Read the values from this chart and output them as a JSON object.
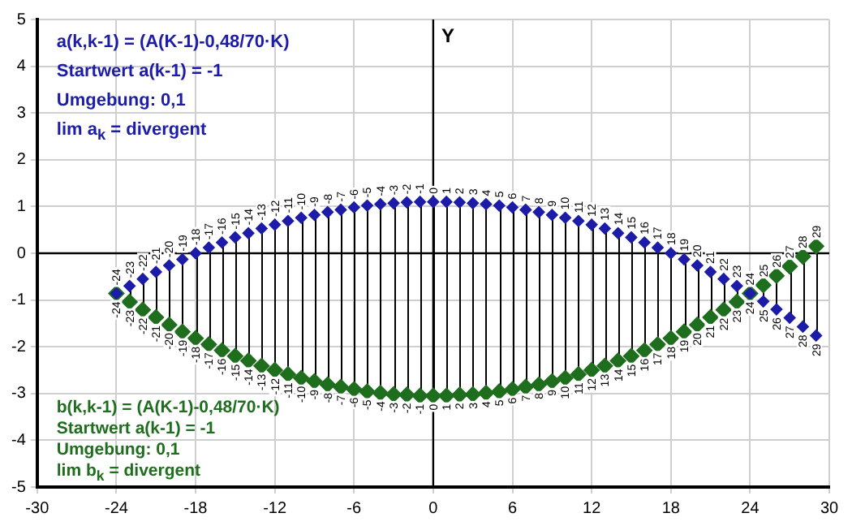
{
  "chart_data": {
    "type": "scatter",
    "ylabel": "Y",
    "x": [
      -24,
      -23,
      -22,
      -21,
      -20,
      -19,
      -18,
      -17,
      -16,
      -15,
      -14,
      -13,
      -12,
      -11,
      -10,
      -9,
      -8,
      -7,
      -6,
      -5,
      -4,
      -3,
      -2,
      -1,
      0,
      1,
      2,
      3,
      4,
      5,
      6,
      7,
      8,
      9,
      10,
      11,
      12,
      13,
      14,
      15,
      16,
      17,
      18,
      19,
      20,
      21,
      22,
      23,
      24,
      25,
      26,
      27,
      28,
      29
    ],
    "series": [
      {
        "color": "#1c1ca8",
        "values": [
          -0.86,
          -0.7,
          -0.55,
          -0.4,
          -0.26,
          -0.13,
          0.0,
          0.12,
          0.23,
          0.34,
          0.43,
          0.53,
          0.61,
          0.69,
          0.76,
          0.82,
          0.88,
          0.93,
          0.98,
          1.02,
          1.05,
          1.07,
          1.09,
          1.1,
          1.1,
          1.1,
          1.09,
          1.07,
          1.05,
          1.02,
          0.98,
          0.93,
          0.88,
          0.82,
          0.76,
          0.69,
          0.61,
          0.53,
          0.43,
          0.34,
          0.23,
          0.12,
          0.0,
          -0.13,
          -0.26,
          -0.4,
          -0.55,
          -0.7,
          -0.86,
          -1.03,
          -1.2,
          -1.38,
          -1.57,
          -1.76
        ]
      },
      {
        "color": "#1e6e1e",
        "values": [
          -0.86,
          -1.04,
          -1.21,
          -1.37,
          -1.53,
          -1.68,
          -1.82,
          -1.95,
          -2.08,
          -2.2,
          -2.3,
          -2.41,
          -2.5,
          -2.59,
          -2.67,
          -2.74,
          -2.81,
          -2.86,
          -2.91,
          -2.96,
          -2.99,
          -3.02,
          -3.03,
          -3.05,
          -3.05,
          -3.05,
          -3.03,
          -3.02,
          -2.99,
          -2.96,
          -2.91,
          -2.86,
          -2.81,
          -2.74,
          -2.67,
          -2.59,
          -2.5,
          -2.41,
          -2.3,
          -2.2,
          -2.08,
          -1.95,
          -1.82,
          -1.68,
          -1.53,
          -1.37,
          -1.21,
          -1.04,
          -0.86,
          -0.68,
          -0.48,
          -0.28,
          -0.07,
          0.15
        ]
      }
    ],
    "xlim": [
      -30,
      30
    ],
    "xticks": [
      -30,
      -24,
      -18,
      -12,
      -6,
      0,
      6,
      12,
      18,
      24,
      30
    ],
    "ylim": [
      -5,
      5
    ],
    "yticks": [
      -5,
      -4,
      -3,
      -2,
      -1,
      0,
      1,
      2,
      3,
      4,
      5
    ],
    "grid": true,
    "marker": "diamond",
    "annotations": [
      "a(k,k-1) = (A(K-1)-0,48/70·K)",
      "Startwert a(k-1) = -1",
      "Umgebung: 0,1",
      "lim a$_{k}$ = divergent",
      "b(k,k-1) = (A(K-1)-0,48/70·K)",
      "Startwert a(k-1) = -1",
      "Umgebung: 0,1",
      "lim b$_{k}$ = divergent",
      {
        "text": "-24",
        "x": -24,
        "y": -0.86
      },
      {
        "text": "-23",
        "x": -23,
        "y": -0.7
      },
      {
        "text": "-22",
        "x": -22,
        "y": -0.55
      },
      {
        "text": "-21",
        "x": -21,
        "y": -0.4
      },
      {
        "text": "-20",
        "x": -20,
        "y": -0.26
      },
      {
        "text": "-19",
        "x": -19,
        "y": -0.13
      },
      {
        "text": "-18",
        "x": -18,
        "y": 0.0
      },
      {
        "text": "-17",
        "x": -17,
        "y": 0.12
      },
      {
        "text": "-16",
        "x": -16,
        "y": 0.23
      },
      {
        "text": "-15",
        "x": -15,
        "y": 0.34
      },
      {
        "text": "-14",
        "x": -14,
        "y": 0.43
      },
      {
        "text": "-13",
        "x": -13,
        "y": 0.53
      },
      {
        "text": "-12",
        "x": -12,
        "y": 0.61
      },
      {
        "text": "-11",
        "x": -11,
        "y": 0.69
      },
      {
        "text": "-10",
        "x": -10,
        "y": 0.76
      },
      {
        "text": "-9",
        "x": -9,
        "y": 0.82
      },
      {
        "text": "-8",
        "x": -8,
        "y": 0.88
      },
      {
        "text": "-7",
        "x": -7,
        "y": 0.93
      },
      {
        "text": "-6",
        "x": -6,
        "y": 0.98
      },
      {
        "text": "-5",
        "x": -5,
        "y": 1.02
      },
      {
        "text": "-4",
        "x": -4,
        "y": 1.05
      },
      {
        "text": "-3",
        "x": -3,
        "y": 1.07
      },
      {
        "text": "-2",
        "x": -2,
        "y": 1.09
      },
      {
        "text": "-1",
        "x": -1,
        "y": 1.1
      },
      {
        "text": "0",
        "x": 0,
        "y": 1.1
      },
      {
        "text": "1",
        "x": 1,
        "y": 1.1
      },
      {
        "text": "2",
        "x": 2,
        "y": 1.09
      },
      {
        "text": "3",
        "x": 3,
        "y": 1.07
      },
      {
        "text": "4",
        "x": 4,
        "y": 1.05
      },
      {
        "text": "5",
        "x": 5,
        "y": 1.02
      },
      {
        "text": "6",
        "x": 6,
        "y": 0.98
      },
      {
        "text": "7",
        "x": 7,
        "y": 0.93
      },
      {
        "text": "8",
        "x": 8,
        "y": 0.88
      },
      {
        "text": "9",
        "x": 9,
        "y": 0.82
      },
      {
        "text": "10",
        "x": 10,
        "y": 0.76
      },
      {
        "text": "11",
        "x": 11,
        "y": 0.69
      },
      {
        "text": "12",
        "x": 12,
        "y": 0.61
      },
      {
        "text": "13",
        "x": 13,
        "y": 0.53
      },
      {
        "text": "14",
        "x": 14,
        "y": 0.43
      },
      {
        "text": "15",
        "x": 15,
        "y": 0.34
      },
      {
        "text": "16",
        "x": 16,
        "y": 0.23
      },
      {
        "text": "17",
        "x": 17,
        "y": 0.12
      },
      {
        "text": "18",
        "x": 18,
        "y": 0.0
      },
      {
        "text": "19",
        "x": 19,
        "y": -0.13
      },
      {
        "text": "20",
        "x": 20,
        "y": -0.26
      },
      {
        "text": "21",
        "x": 21,
        "y": -0.4
      },
      {
        "text": "22",
        "x": 22,
        "y": -0.55
      },
      {
        "text": "23",
        "x": 23,
        "y": -0.7
      },
      {
        "text": "24",
        "x": 24,
        "y": -0.86
      },
      {
        "text": "25",
        "x": 25,
        "y": -1.03
      },
      {
        "text": "26",
        "x": 26,
        "y": -1.2
      },
      {
        "text": "27",
        "x": 27,
        "y": -1.38
      },
      {
        "text": "28",
        "x": 28,
        "y": -1.57
      },
      {
        "text": "29",
        "x": 29,
        "y": -1.76
      },
      {
        "text": "-24",
        "x": -24,
        "y": -0.86
      },
      {
        "text": "-23",
        "x": -23,
        "y": -1.04
      },
      {
        "text": "-22",
        "x": -22,
        "y": -1.21
      },
      {
        "text": "-21",
        "x": -21,
        "y": -1.37
      },
      {
        "text": "-20",
        "x": -20,
        "y": -1.53
      },
      {
        "text": "-19",
        "x": -19,
        "y": -1.68
      },
      {
        "text": "-18",
        "x": -18,
        "y": -1.82
      },
      {
        "text": "-17",
        "x": -17,
        "y": -1.95
      },
      {
        "text": "-16",
        "x": -16,
        "y": -2.08
      },
      {
        "text": "-15",
        "x": -15,
        "y": -2.2
      },
      {
        "text": "-14",
        "x": -14,
        "y": -2.3
      },
      {
        "text": "-13",
        "x": -13,
        "y": -2.41
      },
      {
        "text": "-12",
        "x": -12,
        "y": -2.5
      },
      {
        "text": "-11",
        "x": -11,
        "y": -2.59
      },
      {
        "text": "-10",
        "x": -10,
        "y": -2.67
      },
      {
        "text": "-9",
        "x": -9,
        "y": -2.74
      },
      {
        "text": "-8",
        "x": -8,
        "y": -2.81
      },
      {
        "text": "-7",
        "x": -7,
        "y": -2.86
      },
      {
        "text": "-6",
        "x": -6,
        "y": -2.91
      },
      {
        "text": "-5",
        "x": -5,
        "y": -2.96
      },
      {
        "text": "-4",
        "x": -4,
        "y": -2.99
      },
      {
        "text": "-3",
        "x": -3,
        "y": -3.02
      },
      {
        "text": "-2",
        "x": -2,
        "y": -3.03
      },
      {
        "text": "-1",
        "x": -1,
        "y": -3.05
      },
      {
        "text": "0",
        "x": 0,
        "y": -3.05
      },
      {
        "text": "1",
        "x": 1,
        "y": -3.05
      },
      {
        "text": "2",
        "x": 2,
        "y": -3.03
      },
      {
        "text": "3",
        "x": 3,
        "y": -3.02
      },
      {
        "text": "4",
        "x": 4,
        "y": -2.99
      },
      {
        "text": "5",
        "x": 5,
        "y": -2.96
      },
      {
        "text": "6",
        "x": 6,
        "y": -2.91
      },
      {
        "text": "7",
        "x": 7,
        "y": -2.86
      },
      {
        "text": "8",
        "x": 8,
        "y": -2.81
      },
      {
        "text": "9",
        "x": 9,
        "y": -2.74
      },
      {
        "text": "10",
        "x": 10,
        "y": -2.67
      },
      {
        "text": "11",
        "x": 11,
        "y": -2.59
      },
      {
        "text": "12",
        "x": 12,
        "y": -2.5
      },
      {
        "text": "13",
        "x": 13,
        "y": -2.41
      },
      {
        "text": "14",
        "x": 14,
        "y": -2.3
      },
      {
        "text": "15",
        "x": 15,
        "y": -2.2
      },
      {
        "text": "16",
        "x": 16,
        "y": -2.08
      },
      {
        "text": "17",
        "x": 17,
        "y": -1.95
      },
      {
        "text": "18",
        "x": 18,
        "y": -1.82
      },
      {
        "text": "19",
        "x": 19,
        "y": -1.68
      },
      {
        "text": "20",
        "x": 20,
        "y": -1.53
      },
      {
        "text": "21",
        "x": 21,
        "y": -1.37
      },
      {
        "text": "22",
        "x": 22,
        "y": -1.21
      },
      {
        "text": "23",
        "x": 23,
        "y": -1.04
      },
      {
        "text": "24",
        "x": 24,
        "y": -0.86
      },
      {
        "text": "25",
        "x": 25,
        "y": -0.68
      },
      {
        "text": "26",
        "x": 26,
        "y": -0.48
      },
      {
        "text": "27",
        "x": 27,
        "y": -0.28
      },
      {
        "text": "28",
        "x": 28,
        "y": -0.07
      },
      {
        "text": "29",
        "x": 29,
        "y": 0.15
      }
    ]
  }
}
